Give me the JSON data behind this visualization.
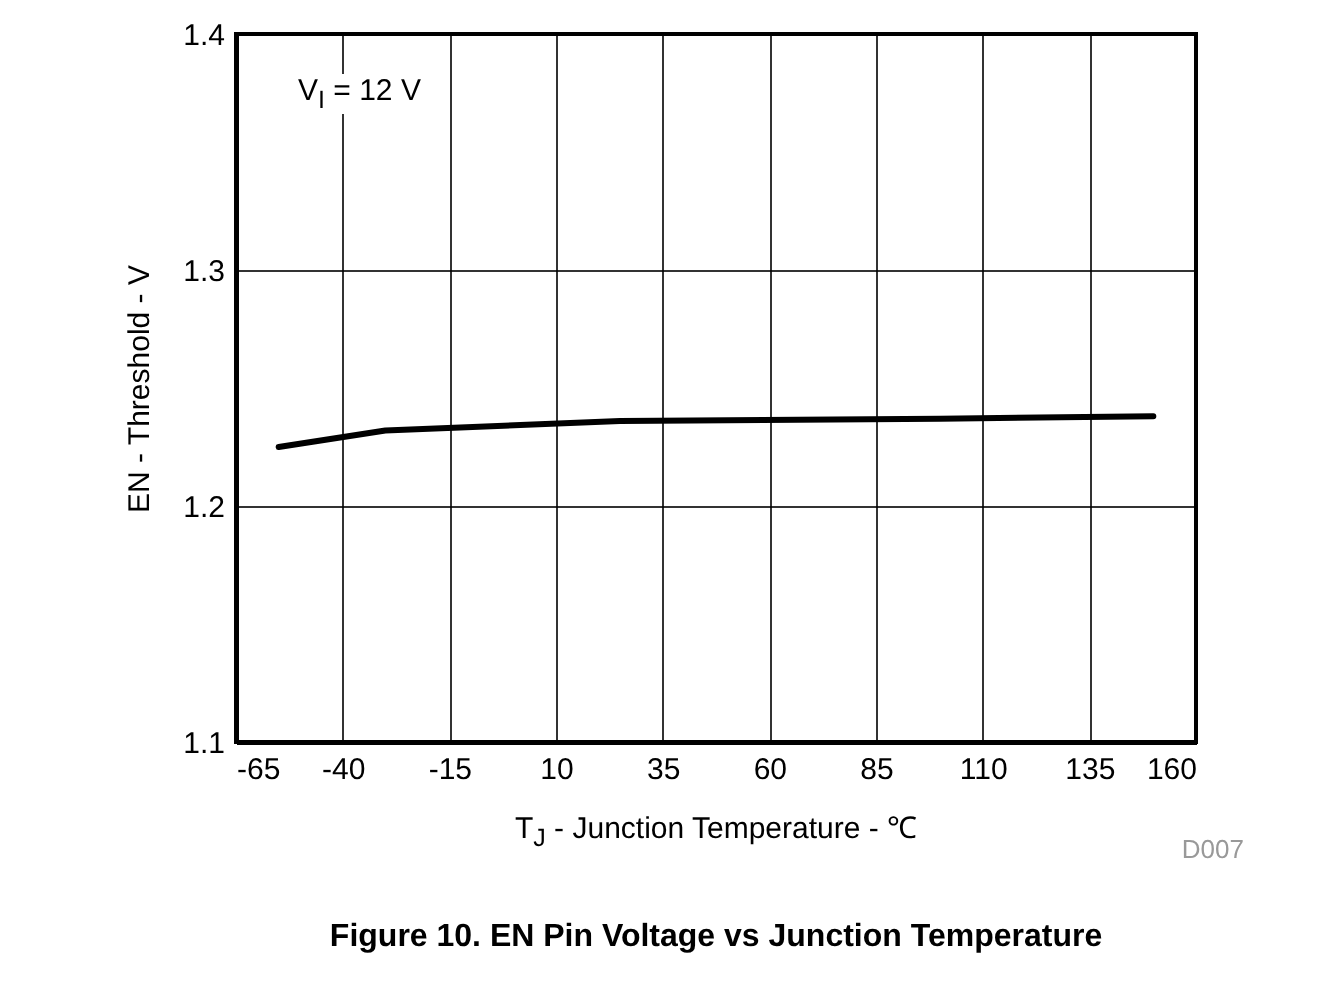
{
  "chart_data": {
    "type": "line",
    "title": "Figure 10. EN Pin Voltage vs Junction Temperature",
    "xlabel": "T$_{J}$ - Junction Temperature - ℃",
    "ylabel": "EN - Threshold - V",
    "annotations": [
      "V$_{I}$ = 12 V",
      "D007"
    ],
    "x": [
      -55,
      -30,
      25,
      100,
      150
    ],
    "series": [
      {
        "color": "#000000",
        "values": [
          1.225,
          1.232,
          1.236,
          1.237,
          1.238
        ]
      }
    ],
    "xlim": [
      -65,
      160
    ],
    "xticks": [
      -65,
      -40,
      -15,
      10,
      35,
      60,
      85,
      110,
      135,
      160
    ],
    "ylim": [
      1.1,
      1.4
    ],
    "yticks": [
      1.1,
      1.2,
      1.3,
      1.4
    ],
    "grid": true
  }
}
